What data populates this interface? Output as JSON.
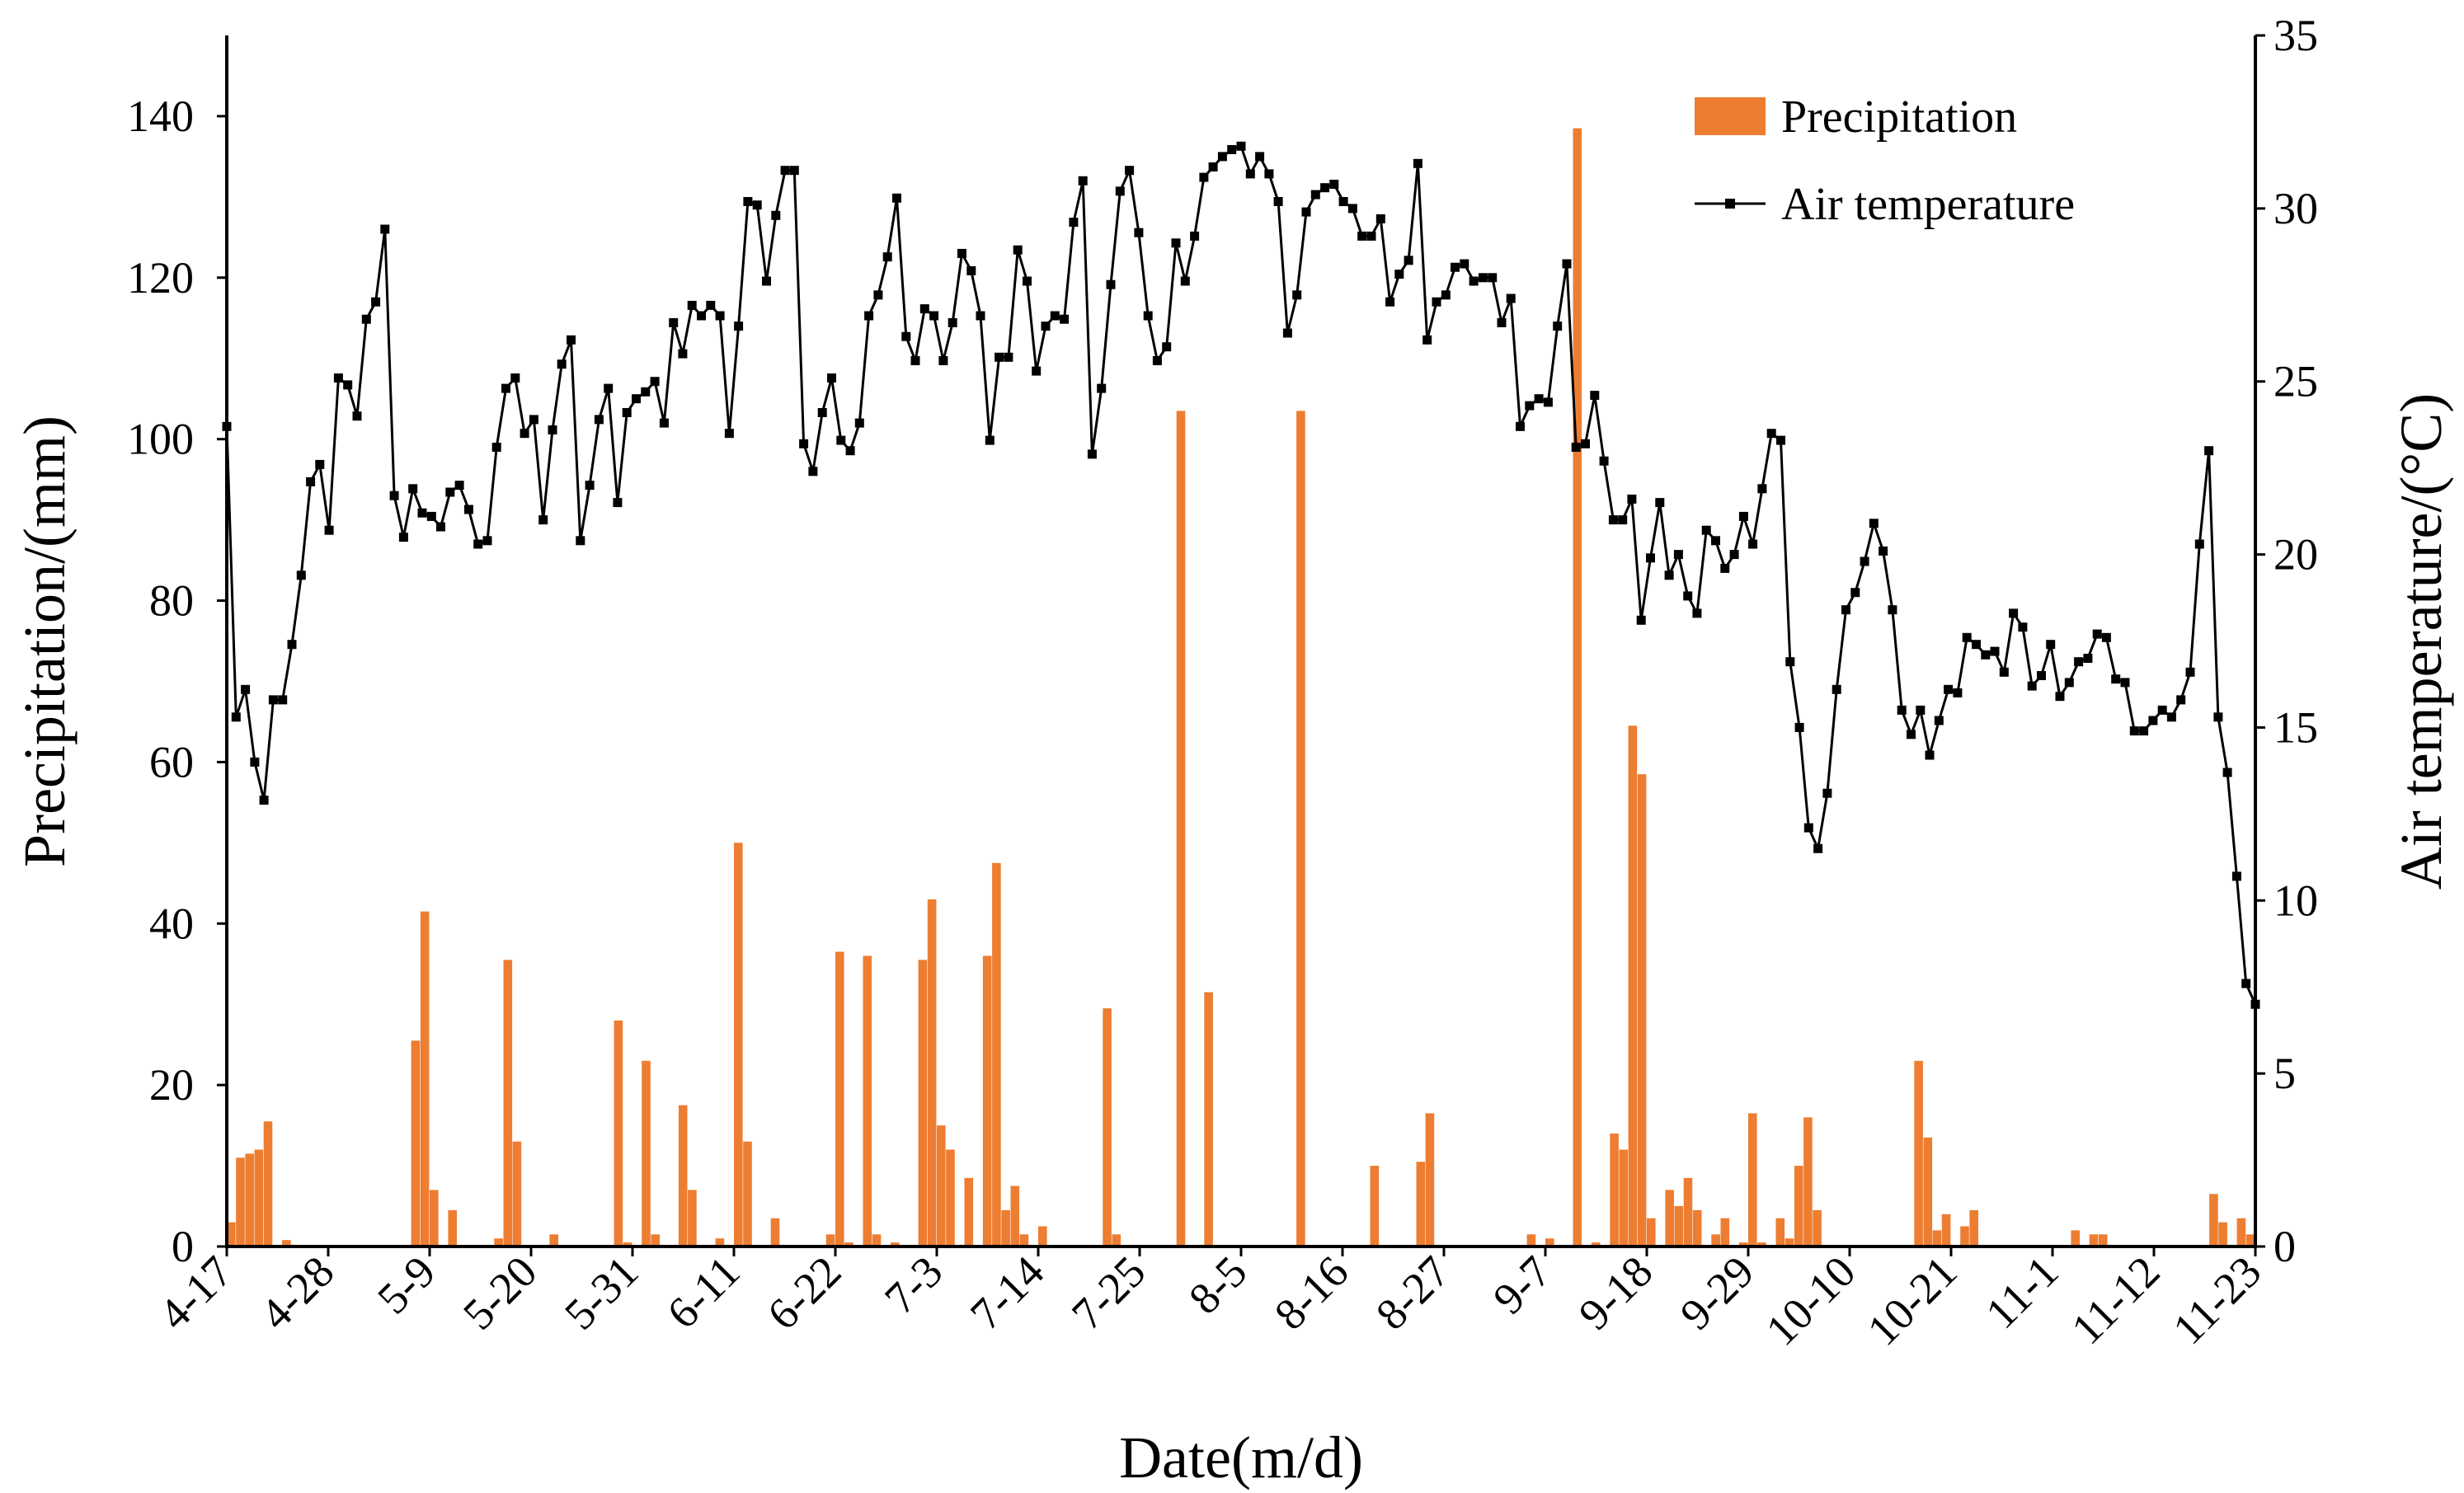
{
  "chart_data": {
    "type": "bar+line",
    "xlabel": "Date(m/d)",
    "ylabel_left": "Precipitation/(mm)",
    "ylabel_right": "Air temperature/(°C)",
    "ylim_left": [
      0,
      150
    ],
    "ylim_right": [
      0,
      35
    ],
    "yticks_left": [
      "0",
      "20",
      "40",
      "60",
      "80",
      "100",
      "120",
      "140"
    ],
    "yticks_right": [
      "0",
      "5",
      "10",
      "15",
      "20",
      "25",
      "30",
      "35"
    ],
    "xticks": [
      "4-17",
      "4-28",
      "5-9",
      "5-20",
      "5-31",
      "6-11",
      "6-22",
      "7-3",
      "7-14",
      "7-25",
      "8-5",
      "8-16",
      "8-27",
      "9-7",
      "9-18",
      "9-29",
      "10-10",
      "10-21",
      "11-1",
      "11-12",
      "11-23"
    ],
    "grid": false,
    "legend_position": "top-right",
    "series": [
      {
        "name": "Precipitation",
        "type": "bar",
        "axis": "left",
        "color": "#ED7D31",
        "points": [
          [
            "4-17",
            3
          ],
          [
            "4-18",
            11
          ],
          [
            "4-19",
            11.5
          ],
          [
            "4-20",
            12
          ],
          [
            "4-21",
            15.5
          ],
          [
            "4-23",
            0.8
          ],
          [
            "5-7",
            25.5
          ],
          [
            "5-8",
            41.5
          ],
          [
            "5-9",
            7
          ],
          [
            "5-11",
            4.5
          ],
          [
            "5-16",
            1
          ],
          [
            "5-17",
            35.5
          ],
          [
            "5-18",
            13
          ],
          [
            "5-22",
            1.5
          ],
          [
            "5-29",
            28
          ],
          [
            "5-30",
            0.5
          ],
          [
            "6-1",
            23
          ],
          [
            "6-2",
            1.5
          ],
          [
            "6-5",
            17.5
          ],
          [
            "6-6",
            7
          ],
          [
            "6-9",
            1
          ],
          [
            "6-11",
            50
          ],
          [
            "6-12",
            13
          ],
          [
            "6-15",
            3.5
          ],
          [
            "6-21",
            1.5
          ],
          [
            "6-22",
            36.5
          ],
          [
            "6-23",
            0.5
          ],
          [
            "6-25",
            36
          ],
          [
            "6-26",
            1.5
          ],
          [
            "6-28",
            0.5
          ],
          [
            "7-1",
            35.5
          ],
          [
            "7-2",
            43
          ],
          [
            "7-3",
            15
          ],
          [
            "7-4",
            12
          ],
          [
            "7-6",
            8.5
          ],
          [
            "7-8",
            36
          ],
          [
            "7-9",
            47.5
          ],
          [
            "7-10",
            4.5
          ],
          [
            "7-11",
            7.5
          ],
          [
            "7-12",
            1.5
          ],
          [
            "7-14",
            2.5
          ],
          [
            "7-21",
            29.5
          ],
          [
            "7-22",
            1.5
          ],
          [
            "7-29",
            103.5
          ],
          [
            "8-1",
            31.5
          ],
          [
            "8-11",
            103.5
          ],
          [
            "8-19",
            10
          ],
          [
            "8-24",
            10.5
          ],
          [
            "8-25",
            16.5
          ],
          [
            "9-5",
            1.5
          ],
          [
            "9-7",
            1
          ],
          [
            "9-10",
            138.5
          ],
          [
            "9-12",
            0.5
          ],
          [
            "9-14",
            14
          ],
          [
            "9-15",
            12
          ],
          [
            "9-16",
            64.5
          ],
          [
            "9-17",
            58.5
          ],
          [
            "9-18",
            3.5
          ],
          [
            "9-20",
            7
          ],
          [
            "9-21",
            5
          ],
          [
            "9-22",
            8.5
          ],
          [
            "9-23",
            4.5
          ],
          [
            "9-25",
            1.5
          ],
          [
            "9-26",
            3.5
          ],
          [
            "9-28",
            0.5
          ],
          [
            "9-29",
            16.5
          ],
          [
            "9-30",
            0.5
          ],
          [
            "10-2",
            3.5
          ],
          [
            "10-3",
            1
          ],
          [
            "10-4",
            10
          ],
          [
            "10-5",
            16
          ],
          [
            "10-6",
            4.5
          ],
          [
            "10-17",
            23
          ],
          [
            "10-18",
            13.5
          ],
          [
            "10-19",
            2
          ],
          [
            "10-20",
            4
          ],
          [
            "10-22",
            2.5
          ],
          [
            "10-23",
            4.5
          ],
          [
            "11-3",
            2
          ],
          [
            "11-5",
            1.5
          ],
          [
            "11-6",
            1.5
          ],
          [
            "11-18",
            6.5
          ],
          [
            "11-19",
            3
          ],
          [
            "11-21",
            3.5
          ],
          [
            "11-22",
            1.5
          ],
          [
            "11-24",
            1
          ]
        ]
      },
      {
        "name": "Air temperature",
        "type": "line",
        "axis": "right",
        "color": "#000000",
        "marker": "square",
        "values": [
          23.7,
          15.3,
          16.1,
          14,
          12.9,
          15.8,
          15.8,
          17.4,
          19.4,
          22.1,
          22.6,
          20.7,
          25.1,
          24.9,
          24.0,
          26.8,
          27.3,
          29.4,
          21.7,
          20.5,
          21.9,
          21.2,
          21.1,
          20.8,
          21.8,
          22.0,
          21.3,
          20.3,
          20.4,
          23.1,
          24.8,
          25.1,
          23.5,
          23.9,
          21.0,
          23.6,
          25.5,
          26.2,
          20.4,
          22.0,
          23.9,
          24.8,
          21.5,
          24.1,
          24.5,
          24.7,
          25.0,
          23.8,
          26.7,
          25.8,
          27.2,
          26.9,
          27.2,
          26.9,
          23.5,
          26.6,
          30.2,
          30.1,
          27.9,
          29.8,
          31.1,
          31.1,
          23.2,
          22.4,
          24.1,
          25.1,
          23.3,
          23.0,
          23.8,
          26.9,
          27.5,
          28.6,
          30.3,
          26.3,
          25.6,
          27.1,
          26.9,
          25.6,
          26.7,
          28.7,
          28.2,
          26.9,
          23.3,
          25.7,
          25.7,
          28.8,
          27.9,
          25.3,
          26.6,
          26.9,
          26.8,
          29.6,
          30.8,
          22.9,
          24.8,
          27.8,
          30.5,
          31.1,
          29.3,
          26.9,
          25.6,
          26.0,
          29.0,
          27.9,
          29.2,
          30.9,
          31.2,
          31.5,
          31.7,
          31.8,
          31.0,
          31.5,
          31.0,
          30.2,
          26.4,
          27.5,
          29.9,
          30.4,
          30.6,
          30.7,
          30.2,
          30.0,
          29.2,
          29.2,
          29.7,
          27.3,
          28.1,
          28.5,
          31.3,
          26.2,
          27.3,
          27.5,
          28.3,
          28.4,
          27.9,
          28.0,
          28.0,
          26.7,
          27.4,
          23.7,
          24.3,
          24.5,
          24.4,
          26.6,
          28.4,
          23.1,
          23.2,
          24.6,
          22.7,
          21.0,
          21.0,
          21.6,
          18.1,
          19.9,
          21.5,
          19.4,
          20.0,
          18.8,
          18.3,
          20.7,
          20.4,
          19.6,
          20.0,
          21.1,
          20.3,
          21.9,
          23.5,
          23.3,
          16.9,
          15.0,
          12.1,
          11.5,
          13.1,
          16.1,
          18.4,
          18.9,
          19.8,
          20.9,
          20.1,
          18.4,
          15.5,
          14.8,
          15.5,
          14.2,
          15.2,
          16.1,
          16.0,
          17.6,
          17.4,
          17.1,
          17.2,
          16.6,
          18.3,
          17.9,
          16.2,
          16.5,
          17.4,
          15.9,
          16.3,
          16.9,
          17.0,
          17.7,
          17.6,
          16.4,
          16.3,
          14.9,
          14.9,
          15.2,
          15.5,
          15.3,
          15.8,
          16.6,
          20.3,
          23.0,
          15.3,
          13.7,
          10.7,
          7.6,
          7.0
        ]
      }
    ]
  }
}
